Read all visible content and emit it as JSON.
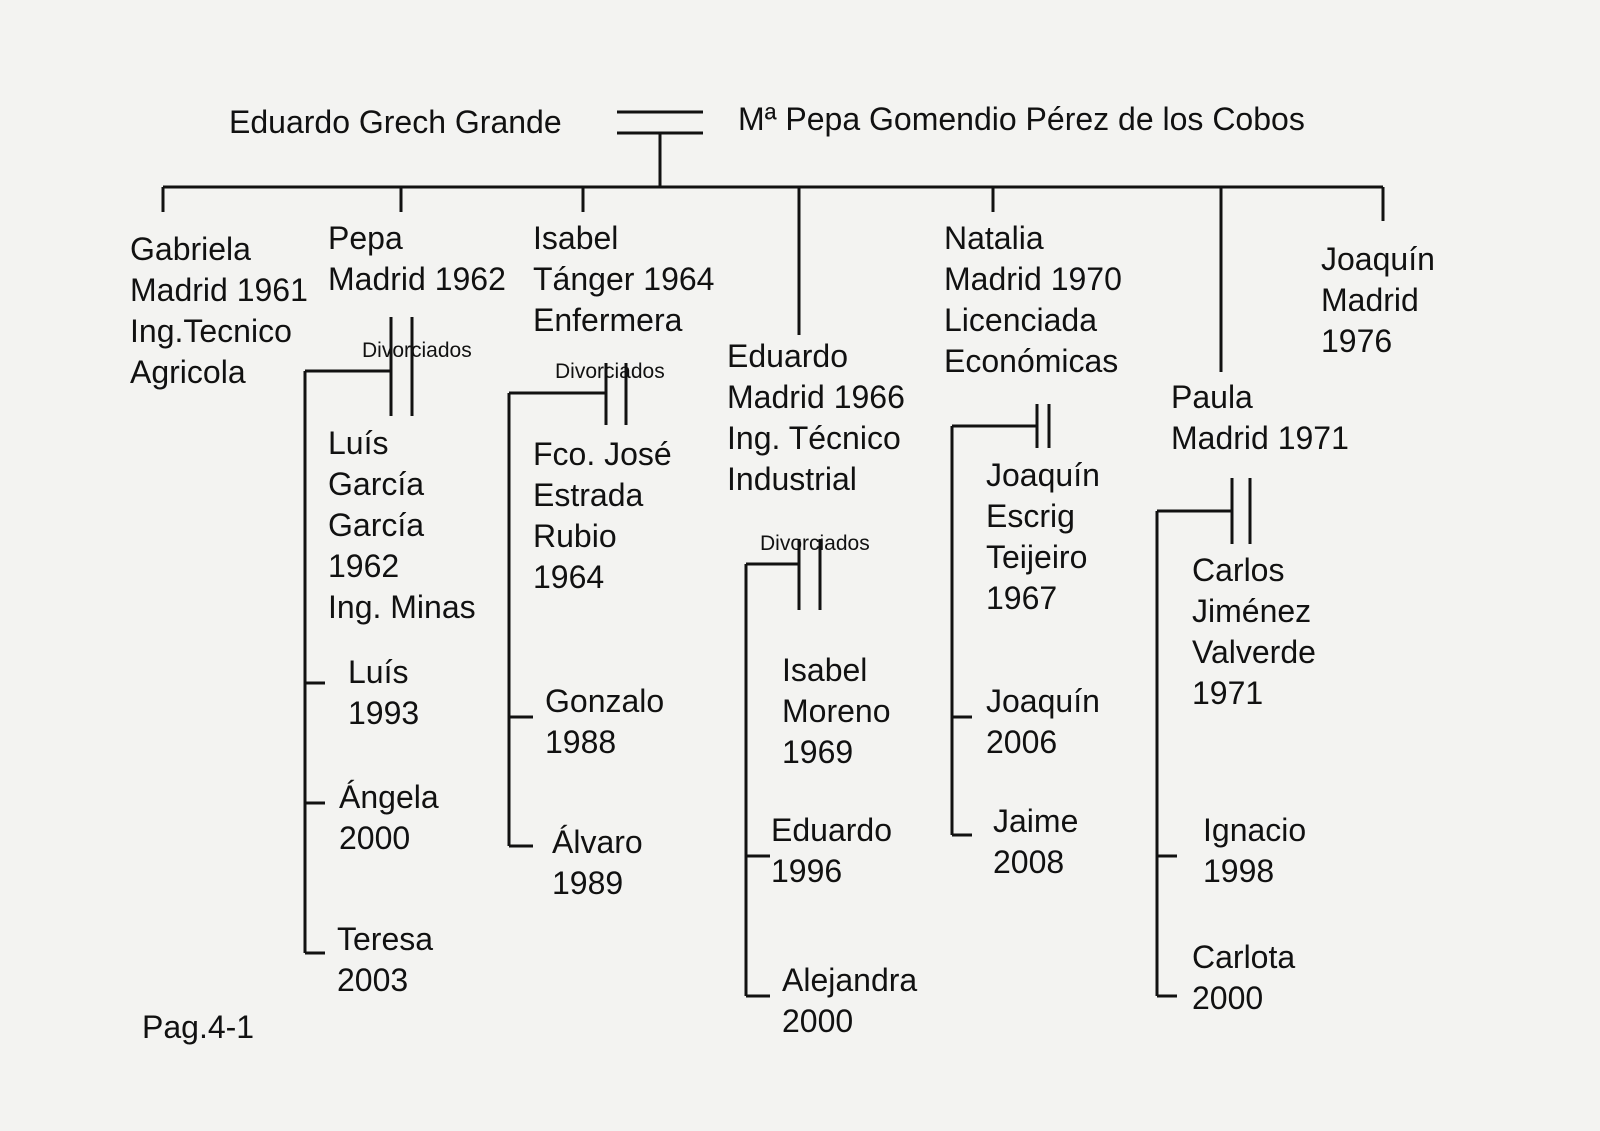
{
  "parents": {
    "father": "Eduardo Grech Grande",
    "mother": "Mª Pepa Gomendio Pérez de los Cobos"
  },
  "divorce_label": "Divorciados",
  "page_label": "Pag.4-1",
  "children": [
    {
      "lines": [
        "Gabriela",
        "Madrid 1961",
        "Ing.Tecnico",
        "Agricola"
      ]
    },
    {
      "lines": [
        "Pepa",
        "Madrid 1962"
      ],
      "spouse": [
        "Luís",
        "García",
        "García",
        "1962",
        "Ing. Minas"
      ],
      "kids": [
        [
          "Luís",
          "1993"
        ],
        [
          "Ángela",
          "2000"
        ],
        [
          "Teresa",
          "2003"
        ]
      ]
    },
    {
      "lines": [
        "Isabel",
        "Tánger 1964",
        "Enfermera"
      ],
      "spouse": [
        "Fco. José",
        "Estrada",
        "Rubio",
        "1964"
      ],
      "kids": [
        [
          "Gonzalo",
          "1988"
        ],
        [
          "Álvaro",
          "1989"
        ]
      ]
    },
    {
      "lines": [
        "Eduardo",
        "Madrid 1966",
        "Ing. Técnico",
        "Industrial"
      ],
      "spouse": [
        "Isabel",
        "Moreno",
        "1969"
      ],
      "kids": [
        [
          "Eduardo",
          "1996"
        ],
        [
          "Alejandra",
          "2000"
        ]
      ]
    },
    {
      "lines": [
        "Natalia",
        "Madrid 1970",
        "Licenciada",
        "Económicas"
      ],
      "spouse": [
        "Joaquín",
        "Escrig",
        "Teijeiro",
        "1967"
      ],
      "kids": [
        [
          "Joaquín",
          "2006"
        ],
        [
          "Jaime",
          "2008"
        ]
      ]
    },
    {
      "lines": [
        "Paula",
        "Madrid 1971"
      ],
      "spouse": [
        "Carlos",
        "Jiménez",
        "Valverde",
        "1971"
      ],
      "kids": [
        [
          "Ignacio",
          "1998"
        ],
        [
          "Carlota",
          "2000"
        ]
      ]
    },
    {
      "lines": [
        "Joaquín",
        "Madrid",
        "1976"
      ]
    }
  ]
}
